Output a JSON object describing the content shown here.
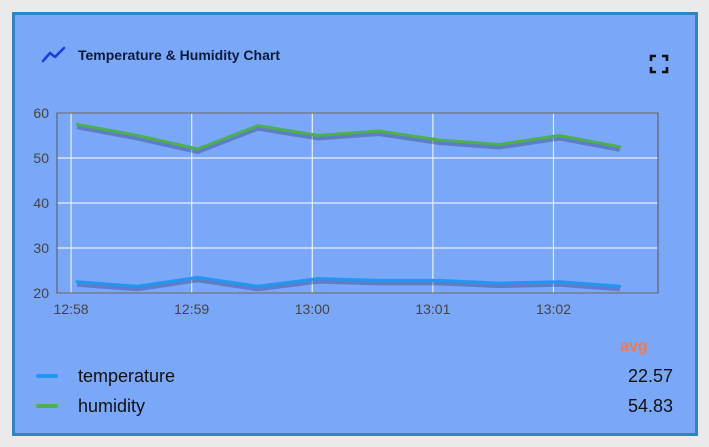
{
  "card": {
    "title": "Temperature & Humidity Chart",
    "header_icon": "trending-up-icon",
    "fullscreen_icon": "fullscreen-icon"
  },
  "colors": {
    "card_bg": "#7aa7f7",
    "border": "#2e86c1",
    "temperature": "#2196f3",
    "humidity": "#4caf50",
    "avg_label": "#f37a4a",
    "grid": "#e9f0fd"
  },
  "legend": {
    "header": "avg",
    "items": [
      {
        "name": "temperature",
        "avg": "22.57",
        "color": "#2196f3"
      },
      {
        "name": "humidity",
        "avg": "54.83",
        "color": "#4caf50"
      }
    ]
  },
  "chart_data": {
    "type": "line",
    "title": "Temperature & Humidity Chart",
    "xlabel": "",
    "ylabel": "",
    "x_ticks": [
      "12:58",
      "12:59",
      "13:00",
      "13:01",
      "13:02"
    ],
    "x": [
      "12:58:03",
      "12:58:33",
      "12:59:03",
      "12:59:33",
      "13:00:03",
      "13:00:33",
      "13:01:03",
      "13:01:33",
      "13:02:03",
      "13:02:33"
    ],
    "xlim": [
      "12:57:53",
      "13:02:52"
    ],
    "ylim": [
      20,
      60
    ],
    "y_ticks": [
      20,
      30,
      40,
      50,
      60
    ],
    "grid": true,
    "series": [
      {
        "name": "temperature",
        "color": "#2196f3",
        "values": [
          22.5,
          21.5,
          23.5,
          21.5,
          23.2,
          22.8,
          22.8,
          22.2,
          22.5,
          21.5
        ]
      },
      {
        "name": "humidity",
        "color": "#4caf50",
        "values": [
          57.5,
          55.0,
          52.0,
          57.2,
          55.0,
          56.0,
          54.0,
          53.0,
          55.0,
          52.5
        ]
      }
    ]
  }
}
